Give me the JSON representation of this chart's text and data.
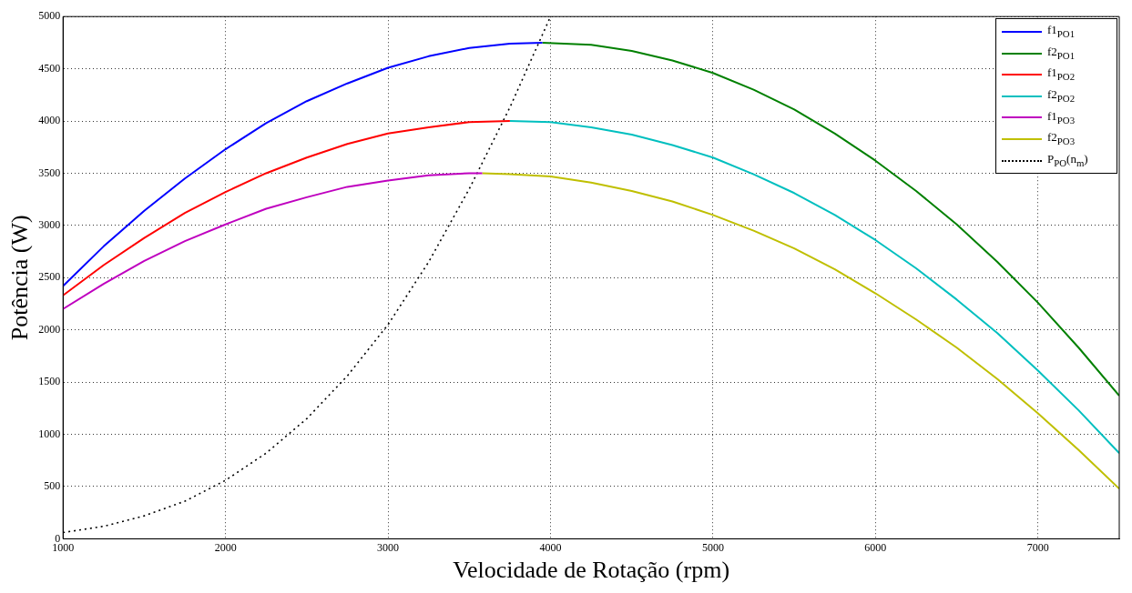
{
  "chart_data": {
    "type": "line",
    "xlabel": "Velocidade de Rotação (rpm)",
    "ylabel": "Potência (W)",
    "xlim": [
      1000,
      7500
    ],
    "xticks": [
      1000,
      2000,
      3000,
      4000,
      5000,
      6000,
      7000
    ],
    "ylim": [
      0,
      5000
    ],
    "yticks": [
      0,
      500,
      1000,
      1500,
      2000,
      2500,
      3000,
      3500,
      4000,
      4500,
      5000
    ],
    "grid": true,
    "legend": "top right",
    "marker": "none",
    "line_style": "solid",
    "series": [
      {
        "name": "f1$_{PO1}$",
        "color": "#0000ff",
        "x": [
          1000,
          1250,
          1500,
          1750,
          2000,
          2250,
          2500,
          2750,
          3000,
          3250,
          3500,
          3750,
          3950
        ],
        "values": [
          2420,
          2800,
          3140,
          3450,
          3730,
          3980,
          4190,
          4360,
          4510,
          4620,
          4700,
          4740,
          4750
        ]
      },
      {
        "name": "f2$_{PO1}$",
        "color": "#008000",
        "x": [
          3950,
          4250,
          4500,
          4750,
          5000,
          5250,
          5500,
          5750,
          6000,
          6250,
          6500,
          6750,
          7000,
          7250,
          7500
        ],
        "values": [
          4750,
          4730,
          4670,
          4580,
          4460,
          4300,
          4110,
          3880,
          3620,
          3330,
          3010,
          2650,
          2260,
          1830,
          1370
        ]
      },
      {
        "name": "f1$_{PO2}$",
        "color": "#ff0000",
        "x": [
          1000,
          1250,
          1500,
          1750,
          2000,
          2250,
          2500,
          2750,
          3000,
          3250,
          3500,
          3750
        ],
        "values": [
          2330,
          2620,
          2880,
          3120,
          3320,
          3500,
          3650,
          3780,
          3880,
          3940,
          3990,
          4000
        ]
      },
      {
        "name": "f2$_{PO2}$",
        "color": "#00bfbf",
        "x": [
          3750,
          4000,
          4250,
          4500,
          4750,
          5000,
          5250,
          5500,
          5750,
          6000,
          6250,
          6500,
          6750,
          7000,
          7250,
          7500
        ],
        "values": [
          4000,
          3990,
          3940,
          3870,
          3770,
          3650,
          3490,
          3310,
          3100,
          2860,
          2590,
          2290,
          1970,
          1610,
          1230,
          820
        ]
      },
      {
        "name": "f1$_{PO3}$",
        "color": "#bf00bf",
        "x": [
          1000,
          1250,
          1500,
          1750,
          2000,
          2250,
          2500,
          2750,
          3000,
          3250,
          3500,
          3580
        ],
        "values": [
          2200,
          2440,
          2660,
          2850,
          3010,
          3160,
          3270,
          3370,
          3430,
          3480,
          3500,
          3500
        ]
      },
      {
        "name": "f2$_{PO3}$",
        "color": "#bfbf00",
        "x": [
          3580,
          3750,
          4000,
          4250,
          4500,
          4750,
          5000,
          5250,
          5500,
          5750,
          6000,
          6250,
          6500,
          6750,
          7000,
          7250,
          7500
        ],
        "values": [
          3500,
          3490,
          3470,
          3410,
          3330,
          3230,
          3100,
          2950,
          2780,
          2580,
          2350,
          2100,
          1830,
          1530,
          1200,
          850,
          480
        ]
      },
      {
        "name": "P$_{PO}$(n$_{m}$)",
        "color": "#000000",
        "line_style": "dotted",
        "x": [
          1000,
          1250,
          1500,
          1750,
          2000,
          2250,
          2500,
          2750,
          3000,
          3250,
          3500,
          3750,
          4000
        ],
        "values": [
          60,
          120,
          220,
          360,
          560,
          820,
          1150,
          1560,
          2050,
          2650,
          3350,
          4130,
          5000
        ]
      }
    ]
  }
}
